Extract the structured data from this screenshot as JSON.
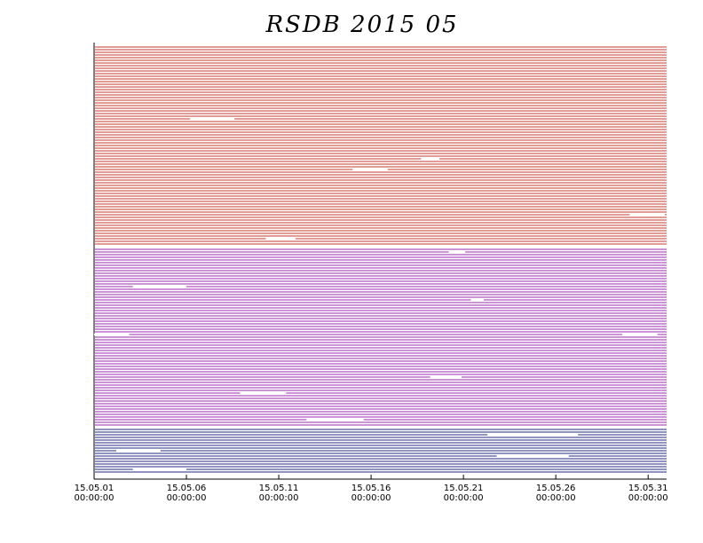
{
  "chart_data": {
    "type": "availability",
    "title": "RSDB 2015 05",
    "xlim": [
      1,
      32
    ],
    "xticks": [
      {
        "value": 1,
        "label": [
          "15.05.01",
          "00:00:00"
        ]
      },
      {
        "value": 6,
        "label": [
          "15.05.06",
          "00:00:00"
        ]
      },
      {
        "value": 11,
        "label": [
          "15.05.11",
          "00:00:00"
        ]
      },
      {
        "value": 16,
        "label": [
          "15.05.16",
          "00:00:00"
        ]
      },
      {
        "value": 21,
        "label": [
          "15.05.21",
          "00:00:00"
        ]
      },
      {
        "value": 26,
        "label": [
          "15.05.26",
          "00:00:00"
        ]
      },
      {
        "value": 31,
        "label": [
          "15.05.31",
          "00:00:00"
        ]
      }
    ],
    "groups": [
      {
        "color": "#c0392b",
        "rows": 75,
        "gaps": [
          [
            27,
            6.2,
            8.6
          ],
          [
            42,
            18.7,
            19.7
          ],
          [
            46,
            15.0,
            16.9
          ],
          [
            63,
            30.0,
            31.9
          ],
          [
            72,
            10.3,
            11.9
          ]
        ]
      },
      {
        "color": "#9b27af",
        "rows": 67,
        "gaps": [
          [
            1,
            20.2,
            21.1
          ],
          [
            14,
            3.1,
            6.0
          ],
          [
            19,
            21.4,
            22.1
          ],
          [
            32,
            1,
            2.9
          ],
          [
            32,
            29.6,
            31.5
          ],
          [
            48,
            19.2,
            20.9
          ],
          [
            54,
            8.9,
            11.4
          ],
          [
            64,
            12.5,
            15.6
          ]
        ]
      },
      {
        "color": "#1f2a80",
        "rows": 17,
        "gaps": [
          [
            2,
            22.3,
            27.2
          ],
          [
            8,
            2.2,
            4.6
          ],
          [
            10,
            22.8,
            26.7
          ],
          [
            15,
            3.1,
            6.0
          ]
        ]
      }
    ]
  }
}
